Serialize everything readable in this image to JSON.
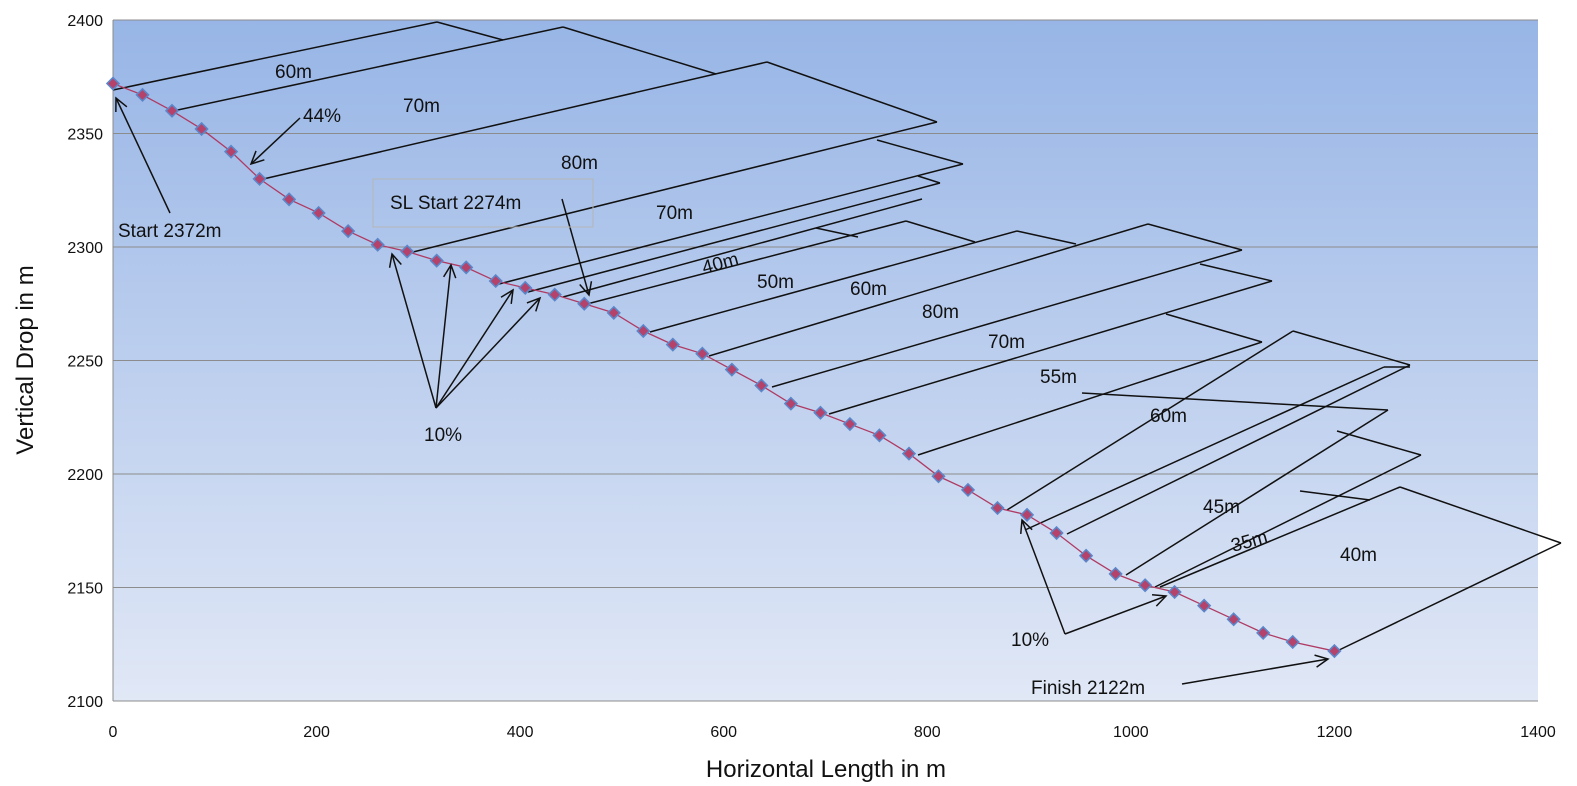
{
  "chart_data": {
    "type": "line",
    "title": "",
    "xlabel": "Horizontal Length in m",
    "ylabel": "Vertical Drop in m",
    "xlim": [
      0,
      1400
    ],
    "ylim": [
      2100,
      2400
    ],
    "x_ticks": [
      0,
      200,
      400,
      600,
      800,
      1000,
      1200,
      1400
    ],
    "y_ticks": [
      2100,
      2150,
      2200,
      2250,
      2300,
      2350,
      2400
    ],
    "grid": "horizontal",
    "legend": "none",
    "colors": {
      "line": "#b03a63",
      "marker_fill": "#b5426a",
      "marker_stroke": "#5b86c9",
      "bg_top": "#97b5e6",
      "bg_bottom": "#e1e8f6",
      "gridline": "#8c8c8c"
    },
    "series": [
      {
        "x": [
          0,
          29,
          58,
          87,
          116,
          144,
          173,
          202,
          231,
          260,
          289,
          318,
          347,
          376,
          405,
          434,
          463,
          492,
          521,
          550,
          579,
          608,
          637,
          666,
          695,
          724,
          753,
          782,
          811,
          840,
          869,
          898,
          927,
          956,
          985,
          1014,
          1043,
          1072,
          1101,
          1130,
          1159,
          1200
        ],
        "y": [
          2372,
          2367,
          2360,
          2352,
          2342,
          2330,
          2321,
          2315,
          2307,
          2301,
          2298,
          2294,
          2291,
          2285,
          2282,
          2279,
          2275,
          2271,
          2263,
          2257,
          2253,
          2246,
          2239,
          2231,
          2227,
          2222,
          2217,
          2209,
          2199,
          2193,
          2185,
          2182,
          2174,
          2164,
          2156,
          2151,
          2148,
          2142,
          2136,
          2130,
          2126,
          2122
        ]
      }
    ],
    "annotations": {
      "start": "Start  2372m",
      "sl_start": "SL  Start 2274m",
      "finish": "Finish  2122m",
      "grade_44": "44%",
      "grade_10_a": "10%",
      "grade_10_b": "10%",
      "seg_labels": [
        "60m",
        "70m",
        "80m",
        "70m",
        "40m",
        "50m",
        "60m",
        "80m",
        "70m",
        "55m",
        "60m",
        "45m",
        "35m",
        "40m"
      ]
    }
  }
}
